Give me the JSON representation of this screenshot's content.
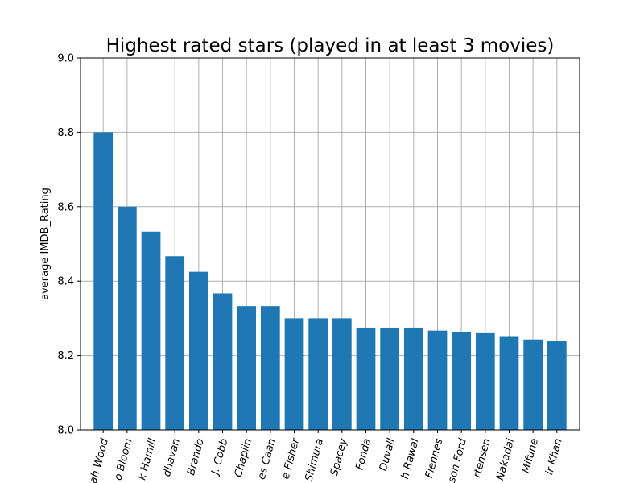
{
  "chart_data": {
    "type": "bar",
    "title": "Highest rated stars (played in at least 3 movies)",
    "xlabel": "",
    "ylabel": "average IMDB_Rating",
    "ylim": [
      8.0,
      9.0
    ],
    "yticks": [
      "8.0",
      "8.2",
      "8.4",
      "8.6",
      "8.8",
      "9.0"
    ],
    "grid": true,
    "bar_color": "#1f77b4",
    "categories": [
      "ah Wood",
      "o Bloom",
      "k Hamill",
      "dhavan",
      "Brando",
      "J. Cobb",
      "Chaplin",
      "es Caan",
      "e Fisher",
      "Shimura",
      "Spacey",
      "Fonda",
      "Duvall",
      "h Rawal",
      "Fiennes",
      "son Ford",
      "rtensen",
      "Nakadai",
      "Mifune",
      "ir Khan"
    ],
    "values": [
      8.8,
      8.6,
      8.533,
      8.467,
      8.425,
      8.367,
      8.333,
      8.333,
      8.3,
      8.3,
      8.3,
      8.275,
      8.275,
      8.275,
      8.267,
      8.262,
      8.26,
      8.25,
      8.243,
      8.24
    ]
  }
}
